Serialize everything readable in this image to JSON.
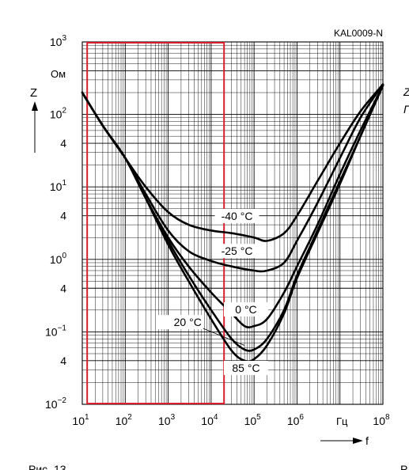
{
  "chart_data": {
    "type": "line",
    "code": "KAL0009-N",
    "caption_left": "Рис. 13",
    "caption_right": "Р",
    "right_edge_text": [
      "Z",
      "Г"
    ],
    "x_axis": {
      "label": "f",
      "unit": "Гц",
      "scale": "log",
      "range": [
        10,
        100000000
      ],
      "tick_labels": [
        {
          "base": "10",
          "exp": "1"
        },
        {
          "base": "10",
          "exp": "2"
        },
        {
          "base": "10",
          "exp": "3"
        },
        {
          "base": "10",
          "exp": "4"
        },
        {
          "base": "10",
          "exp": "5"
        },
        {
          "base": "10",
          "exp": "6"
        },
        {
          "base": "10",
          "exp": "8"
        }
      ]
    },
    "y_axis": {
      "label": "Z",
      "unit": "Ом",
      "scale": "log",
      "range": [
        0.01,
        1000
      ],
      "tick_labels": [
        {
          "base": "10",
          "exp": "3"
        },
        {
          "base": "10",
          "exp": "2"
        },
        {
          "base": "4",
          "exp": ""
        },
        {
          "base": "10",
          "exp": "1"
        },
        {
          "base": "4",
          "exp": ""
        },
        {
          "base": "10",
          "exp": "0"
        },
        {
          "base": "4",
          "exp": ""
        },
        {
          "base": "10",
          "exp": "−1"
        },
        {
          "base": "4",
          "exp": ""
        },
        {
          "base": "10",
          "exp": "−2"
        }
      ]
    },
    "grid": true,
    "highlight_region": {
      "x_from": 13,
      "x_to": 20000,
      "color": "#d81e2a"
    },
    "series": [
      {
        "name": "-40 °C",
        "points": [
          [
            10,
            200
          ],
          [
            30,
            70
          ],
          [
            100,
            25
          ],
          [
            300,
            10
          ],
          [
            1000,
            4.5
          ],
          [
            3000,
            3.0
          ],
          [
            10000,
            2.5
          ],
          [
            30000,
            2.3
          ],
          [
            100000,
            2.0
          ],
          [
            200000,
            1.8
          ],
          [
            500000,
            2.3
          ],
          [
            1000000,
            4.0
          ],
          [
            3000000,
            12
          ],
          [
            10000000,
            40
          ],
          [
            30000000,
            110
          ],
          [
            100000000,
            260
          ]
        ]
      },
      {
        "name": "-25 °C",
        "points": [
          [
            10,
            200
          ],
          [
            30,
            70
          ],
          [
            100,
            25
          ],
          [
            300,
            8
          ],
          [
            1000,
            2.5
          ],
          [
            3000,
            1.3
          ],
          [
            10000,
            0.95
          ],
          [
            30000,
            0.8
          ],
          [
            100000,
            0.7
          ],
          [
            200000,
            0.7
          ],
          [
            500000,
            0.9
          ],
          [
            1000000,
            1.8
          ],
          [
            3000000,
            6
          ],
          [
            10000000,
            25
          ],
          [
            30000000,
            90
          ],
          [
            100000000,
            260
          ]
        ]
      },
      {
        "name": "0 °C",
        "points": [
          [
            10,
            200
          ],
          [
            30,
            70
          ],
          [
            100,
            25
          ],
          [
            300,
            7
          ],
          [
            1000,
            2.0
          ],
          [
            3000,
            0.8
          ],
          [
            10000,
            0.35
          ],
          [
            30000,
            0.18
          ],
          [
            60000,
            0.12
          ],
          [
            100000,
            0.12
          ],
          [
            200000,
            0.15
          ],
          [
            500000,
            0.35
          ],
          [
            1000000,
            0.8
          ],
          [
            3000000,
            3
          ],
          [
            10000000,
            15
          ],
          [
            30000000,
            60
          ],
          [
            100000000,
            250
          ]
        ]
      },
      {
        "name": "20 °C",
        "points": [
          [
            10,
            200
          ],
          [
            30,
            70
          ],
          [
            100,
            25
          ],
          [
            300,
            7
          ],
          [
            1000,
            1.8
          ],
          [
            3000,
            0.6
          ],
          [
            10000,
            0.2
          ],
          [
            30000,
            0.08
          ],
          [
            60000,
            0.057
          ],
          [
            100000,
            0.057
          ],
          [
            200000,
            0.08
          ],
          [
            500000,
            0.2
          ],
          [
            1000000,
            0.6
          ],
          [
            3000000,
            2.5
          ],
          [
            10000000,
            12
          ],
          [
            30000000,
            50
          ],
          [
            100000000,
            250
          ]
        ]
      },
      {
        "name": "85 °C",
        "points": [
          [
            10,
            200
          ],
          [
            30,
            70
          ],
          [
            100,
            25
          ],
          [
            300,
            7
          ],
          [
            1000,
            1.6
          ],
          [
            3000,
            0.5
          ],
          [
            10000,
            0.15
          ],
          [
            30000,
            0.055
          ],
          [
            60000,
            0.04
          ],
          [
            100000,
            0.042
          ],
          [
            200000,
            0.065
          ],
          [
            500000,
            0.18
          ],
          [
            1000000,
            0.55
          ],
          [
            3000000,
            2.3
          ],
          [
            10000000,
            11
          ],
          [
            30000000,
            50
          ],
          [
            100000000,
            250
          ]
        ]
      }
    ]
  }
}
